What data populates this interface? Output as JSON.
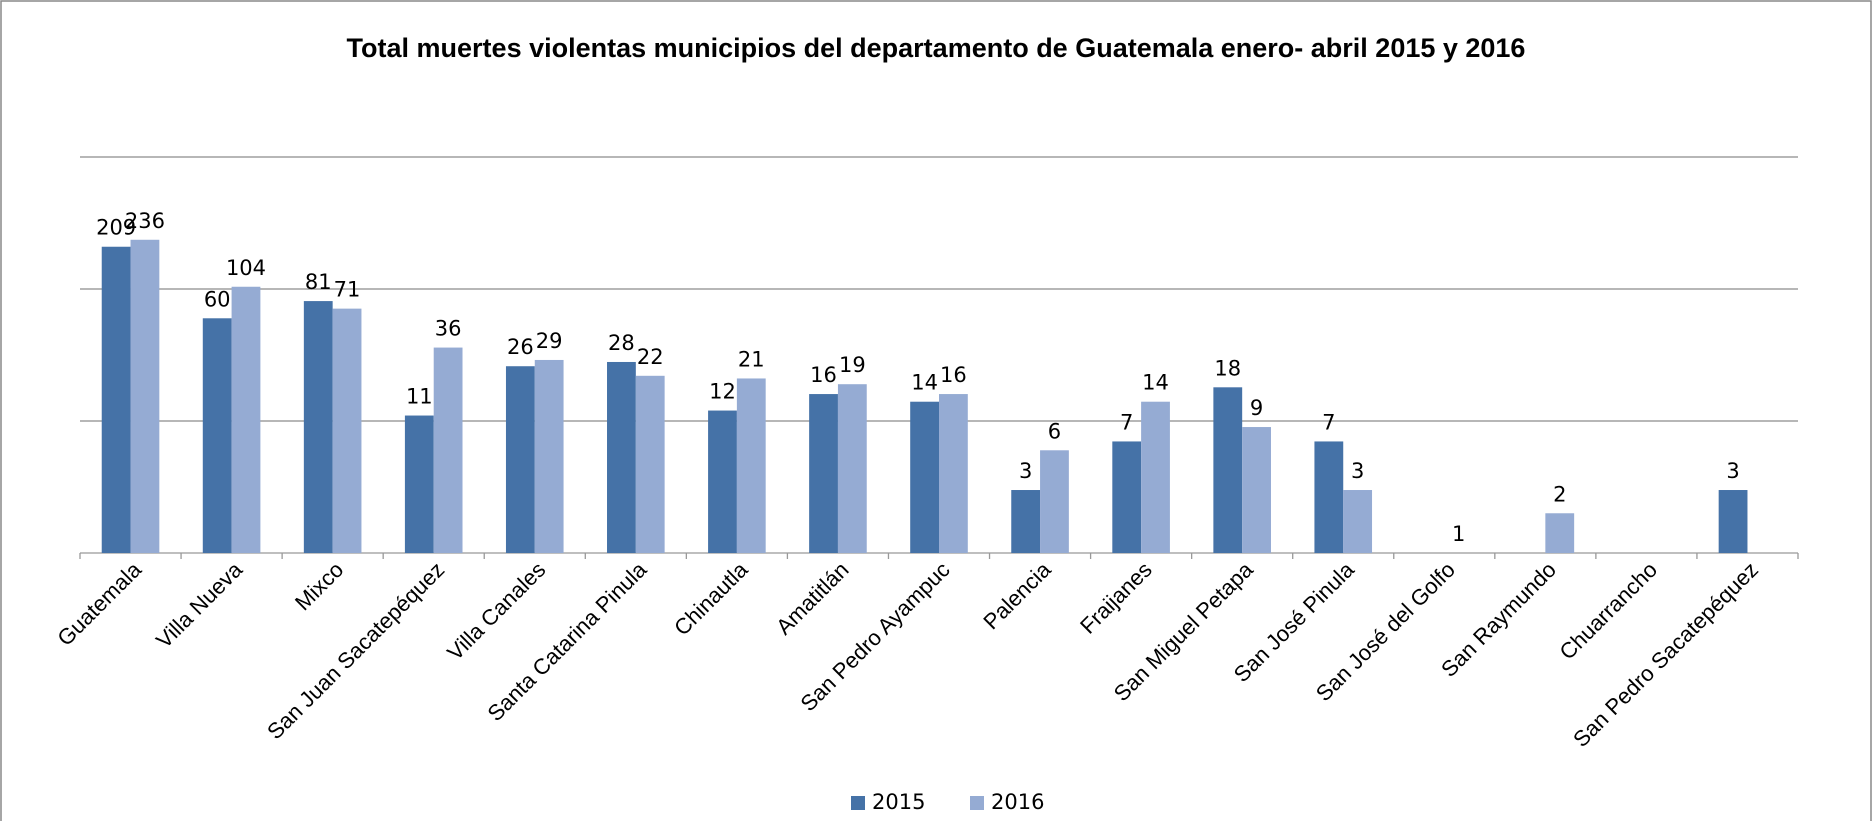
{
  "chart_data": {
    "type": "bar",
    "title": "Total muertes violentas municipios del departamento de Guatemala enero- abril 2015 y 2016",
    "categories": [
      "Guatemala",
      "Villa Nueva",
      "Mixco",
      "San Juan Sacatepéquez",
      "Villa Canales",
      "Santa Catarina Pinula",
      "Chinautla",
      "Amatitlán",
      "San Pedro Ayampuc",
      "Palencia",
      "Fraijanes",
      "San Miguel Petapa",
      "San José Pinula",
      "San José del Golfo",
      "San Raymundo",
      "Chuarrancho",
      "San Pedro Sacatepéquez"
    ],
    "series": [
      {
        "name": "2015",
        "color": "#4572a7",
        "values": [
          209,
          60,
          81,
          11,
          26,
          28,
          12,
          16,
          14,
          3,
          7,
          18,
          7,
          null,
          null,
          null,
          3
        ]
      },
      {
        "name": "2016",
        "color": "#95abd3",
        "values": [
          236,
          104,
          71,
          36,
          29,
          22,
          21,
          19,
          16,
          6,
          14,
          9,
          3,
          1,
          2,
          null,
          null
        ]
      }
    ],
    "log_scale": true,
    "ylim": [
      1,
      1000
    ],
    "yticks": [
      1,
      10,
      100,
      1000
    ],
    "grid": true,
    "legend": "bottom"
  }
}
